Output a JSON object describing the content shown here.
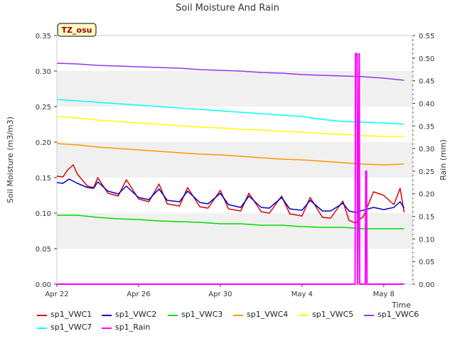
{
  "chart_data": {
    "type": "line",
    "title": "Soil Moisture And Rain",
    "station_tag": "TZ_osu",
    "xlabel": "Time",
    "ylabel": "Soil Moisture (m3/m3)",
    "y2label": "Rain (mm)",
    "ylim": [
      0,
      0.35
    ],
    "y2lim": [
      0,
      0.55
    ],
    "xlim_days": [
      0,
      17.4
    ],
    "x_ticks": [
      "Apr 22",
      "Apr 26",
      "Apr 30",
      "May 4",
      "May 8"
    ],
    "y_ticks": [
      "0.00",
      "0.05",
      "0.10",
      "0.15",
      "0.20",
      "0.25",
      "0.30",
      "0.35"
    ],
    "y2_ticks": [
      "0.00",
      "0.05",
      "0.10",
      "0.15",
      "0.20",
      "0.25",
      "0.30",
      "0.35",
      "0.40",
      "0.45",
      "0.50",
      "0.55"
    ],
    "grid": "horizontal bands",
    "legend_position": "bottom",
    "series": [
      {
        "name": "sp1_VWC1",
        "color": "#dd0000",
        "axis": "left",
        "x": [
          0.0,
          0.3,
          0.5,
          0.8,
          1.0,
          1.5,
          1.8,
          2.0,
          2.5,
          3.0,
          3.4,
          4.0,
          4.5,
          5.0,
          5.4,
          6.0,
          6.4,
          7.0,
          7.4,
          8.0,
          8.4,
          9.0,
          9.4,
          10.0,
          10.4,
          11.0,
          11.4,
          12.0,
          12.4,
          13.0,
          13.4,
          14.0,
          14.3,
          14.6,
          15.0,
          15.5,
          16.0,
          16.5,
          16.8,
          17.0
        ],
        "y": [
          0.152,
          0.151,
          0.16,
          0.168,
          0.155,
          0.138,
          0.136,
          0.15,
          0.128,
          0.124,
          0.147,
          0.12,
          0.116,
          0.141,
          0.113,
          0.11,
          0.136,
          0.109,
          0.107,
          0.132,
          0.106,
          0.103,
          0.128,
          0.102,
          0.1,
          0.124,
          0.099,
          0.096,
          0.122,
          0.094,
          0.093,
          0.117,
          0.09,
          0.086,
          0.095,
          0.13,
          0.125,
          0.112,
          0.135,
          0.101
        ]
      },
      {
        "name": "sp1_VWC2",
        "color": "#0000cc",
        "axis": "left",
        "x": [
          0.0,
          0.3,
          0.6,
          1.0,
          1.5,
          1.8,
          2.0,
          2.5,
          3.0,
          3.4,
          4.0,
          4.5,
          5.0,
          5.4,
          6.0,
          6.4,
          7.0,
          7.4,
          8.0,
          8.4,
          9.0,
          9.4,
          10.0,
          10.4,
          11.0,
          11.4,
          12.0,
          12.4,
          13.0,
          13.4,
          14.0,
          14.3,
          14.6,
          15.0,
          15.5,
          16.0,
          16.5,
          16.8,
          17.0
        ],
        "y": [
          0.143,
          0.142,
          0.148,
          0.142,
          0.136,
          0.135,
          0.144,
          0.131,
          0.127,
          0.138,
          0.122,
          0.119,
          0.134,
          0.118,
          0.116,
          0.131,
          0.115,
          0.113,
          0.128,
          0.112,
          0.108,
          0.124,
          0.108,
          0.107,
          0.122,
          0.106,
          0.104,
          0.118,
          0.103,
          0.103,
          0.114,
          0.103,
          0.101,
          0.104,
          0.108,
          0.105,
          0.108,
          0.116,
          0.107
        ]
      },
      {
        "name": "sp1_VWC3",
        "color": "#00dd00",
        "axis": "left",
        "x": [
          0,
          1,
          2,
          3,
          4,
          5,
          6,
          7,
          8,
          9,
          10,
          11,
          12,
          13,
          14,
          15,
          16,
          17
        ],
        "y": [
          0.097,
          0.097,
          0.094,
          0.092,
          0.091,
          0.089,
          0.088,
          0.087,
          0.085,
          0.085,
          0.083,
          0.083,
          0.081,
          0.08,
          0.08,
          0.078,
          0.078,
          0.078
        ]
      },
      {
        "name": "sp1_VWC4",
        "color": "#ff9900",
        "axis": "left",
        "x": [
          0,
          1,
          2,
          3,
          4,
          5,
          6,
          7,
          8,
          9,
          10,
          11,
          12,
          13,
          14,
          15,
          16,
          17
        ],
        "y": [
          0.198,
          0.196,
          0.193,
          0.191,
          0.189,
          0.187,
          0.185,
          0.183,
          0.182,
          0.18,
          0.178,
          0.176,
          0.175,
          0.173,
          0.171,
          0.169,
          0.168,
          0.169
        ]
      },
      {
        "name": "sp1_VWC5",
        "color": "#ffff00",
        "axis": "left",
        "x": [
          0,
          1,
          2,
          3,
          4,
          5,
          6,
          7,
          8,
          9,
          10,
          11,
          12,
          13,
          14,
          15,
          16,
          17
        ],
        "y": [
          0.236,
          0.234,
          0.231,
          0.229,
          0.227,
          0.225,
          0.223,
          0.221,
          0.22,
          0.218,
          0.217,
          0.215,
          0.214,
          0.212,
          0.211,
          0.209,
          0.208,
          0.208
        ]
      },
      {
        "name": "sp1_VWC6",
        "color": "#9933ee",
        "axis": "left",
        "x": [
          0,
          1,
          2,
          3,
          4,
          5,
          6,
          7,
          8,
          9,
          10,
          11,
          12,
          13,
          14,
          15,
          16,
          17
        ],
        "y": [
          0.311,
          0.31,
          0.308,
          0.307,
          0.306,
          0.305,
          0.304,
          0.302,
          0.301,
          0.3,
          0.298,
          0.297,
          0.295,
          0.294,
          0.293,
          0.292,
          0.29,
          0.287
        ]
      },
      {
        "name": "sp1_VWC7",
        "color": "#00ffff",
        "axis": "left",
        "x": [
          0,
          1,
          2,
          3,
          4,
          5,
          6,
          7,
          8,
          9,
          10,
          11,
          12,
          13,
          14,
          15,
          16,
          17
        ],
        "y": [
          0.26,
          0.258,
          0.256,
          0.254,
          0.252,
          0.25,
          0.248,
          0.246,
          0.244,
          0.242,
          0.24,
          0.238,
          0.236,
          0.232,
          0.229,
          0.228,
          0.227,
          0.225
        ]
      },
      {
        "name": "sp1_Rain",
        "color": "#ff00ff",
        "axis": "right",
        "x": [
          0,
          14.6,
          14.62,
          14.7,
          14.72,
          14.8,
          14.82,
          15.1,
          15.12,
          15.16,
          15.18,
          17.0
        ],
        "y": [
          0,
          0,
          0.51,
          0.51,
          0,
          0.51,
          0,
          0,
          0.25,
          0.25,
          0,
          0
        ]
      }
    ]
  }
}
